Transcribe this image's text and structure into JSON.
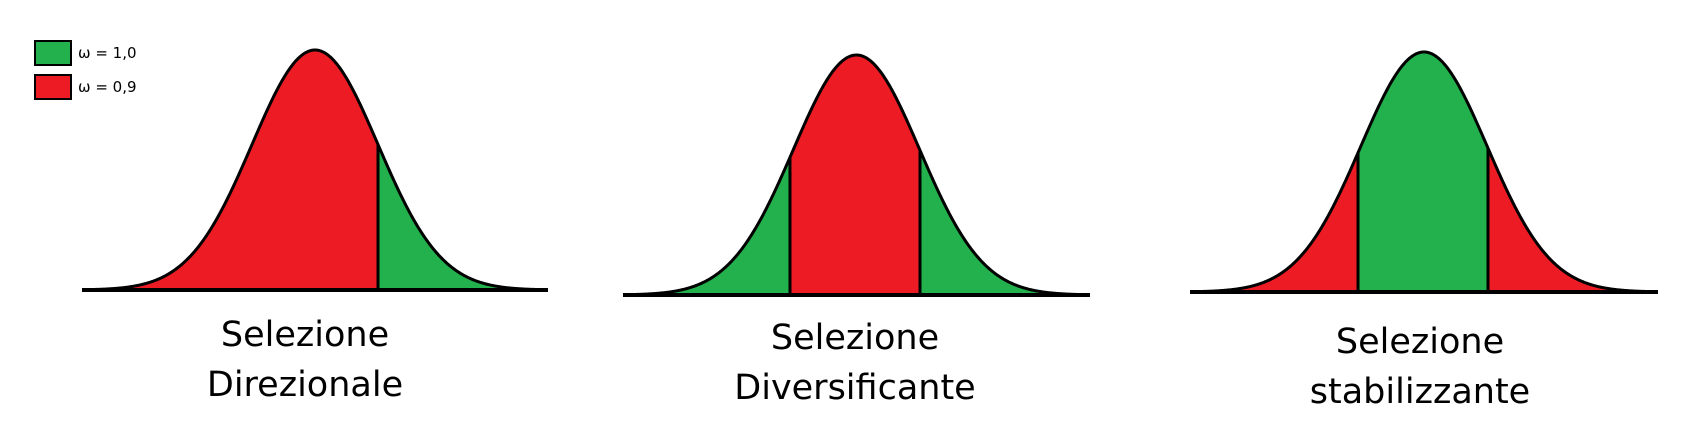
{
  "legend": [
    {
      "label": "ω = 1,0",
      "color": "#22b14c"
    },
    {
      "label": "ω = 0,9",
      "color": "#ed1c24"
    }
  ],
  "panels": [
    {
      "title_line1": "Selezione",
      "title_line2": "Direzionale",
      "segments": [
        {
          "color": "red"
        },
        {
          "color": "green"
        }
      ]
    },
    {
      "title_line1": "Selezione",
      "title_line2": "Diversificante",
      "segments": [
        {
          "color": "green"
        },
        {
          "color": "red"
        },
        {
          "color": "green"
        }
      ]
    },
    {
      "title_line1": "Selezione",
      "title_line2": "stabilizzante",
      "segments": [
        {
          "color": "red"
        },
        {
          "color": "green"
        },
        {
          "color": "red"
        }
      ]
    }
  ],
  "colors": {
    "green": "#22b14c",
    "red": "#ed1c24",
    "outline": "#000000"
  }
}
